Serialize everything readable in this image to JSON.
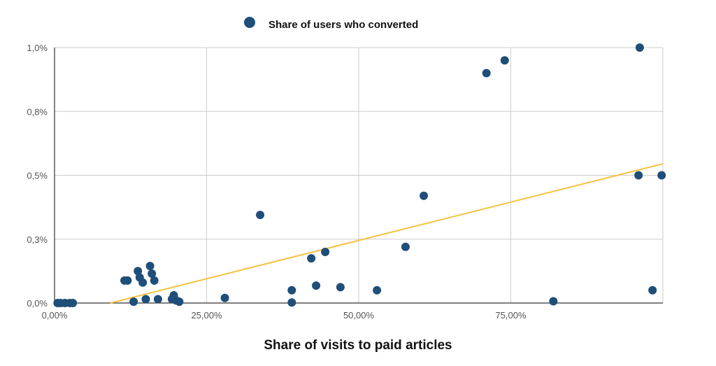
{
  "chart_data": {
    "type": "scatter",
    "title": "",
    "xlabel": "Share of visits to paid articles",
    "ylabel": "",
    "xlim": [
      0,
      1
    ],
    "ylim": [
      0,
      1.0
    ],
    "x_ticks": [
      {
        "value": 0,
        "label": "0,00%"
      },
      {
        "value": 0.25,
        "label": "25,00%"
      },
      {
        "value": 0.5,
        "label": "50,00%"
      },
      {
        "value": 0.75,
        "label": "75,00%"
      }
    ],
    "y_ticks": [
      {
        "value": 0,
        "label": "0,0%"
      },
      {
        "value": 0.25,
        "label": "0,3%"
      },
      {
        "value": 0.5,
        "label": "0,5%"
      },
      {
        "value": 0.75,
        "label": "0,8%"
      },
      {
        "value": 1.0,
        "label": "1,0%"
      }
    ],
    "grid": true,
    "legend_position": "top-center",
    "series": [
      {
        "name": "Share of users who converted",
        "color": "#1f4e79",
        "points": [
          [
            0.005,
            0.0
          ],
          [
            0.01,
            0.0
          ],
          [
            0.017,
            0.0
          ],
          [
            0.025,
            0.0
          ],
          [
            0.03,
            0.0
          ],
          [
            0.115,
            0.088
          ],
          [
            0.12,
            0.088
          ],
          [
            0.13,
            0.005
          ],
          [
            0.137,
            0.125
          ],
          [
            0.14,
            0.1
          ],
          [
            0.145,
            0.08
          ],
          [
            0.15,
            0.015
          ],
          [
            0.157,
            0.145
          ],
          [
            0.16,
            0.115
          ],
          [
            0.164,
            0.088
          ],
          [
            0.17,
            0.015
          ],
          [
            0.193,
            0.015
          ],
          [
            0.196,
            0.03
          ],
          [
            0.2,
            0.01
          ],
          [
            0.205,
            0.005
          ],
          [
            0.28,
            0.02
          ],
          [
            0.338,
            0.345
          ],
          [
            0.39,
            0.05
          ],
          [
            0.39,
            0.002
          ],
          [
            0.422,
            0.175
          ],
          [
            0.43,
            0.068
          ],
          [
            0.445,
            0.2
          ],
          [
            0.47,
            0.062
          ],
          [
            0.53,
            0.05
          ],
          [
            0.577,
            0.22
          ],
          [
            0.607,
            0.42
          ],
          [
            0.71,
            0.9
          ],
          [
            0.74,
            0.95
          ],
          [
            0.82,
            0.007
          ],
          [
            0.96,
            0.5
          ],
          [
            0.962,
            1.0
          ],
          [
            0.983,
            0.05
          ],
          [
            0.998,
            0.5
          ]
        ]
      }
    ],
    "trendline": {
      "color": "#f5c242",
      "x_start": 0.0,
      "y_start": -0.055,
      "x_end": 1.0,
      "y_end": 0.545
    }
  }
}
